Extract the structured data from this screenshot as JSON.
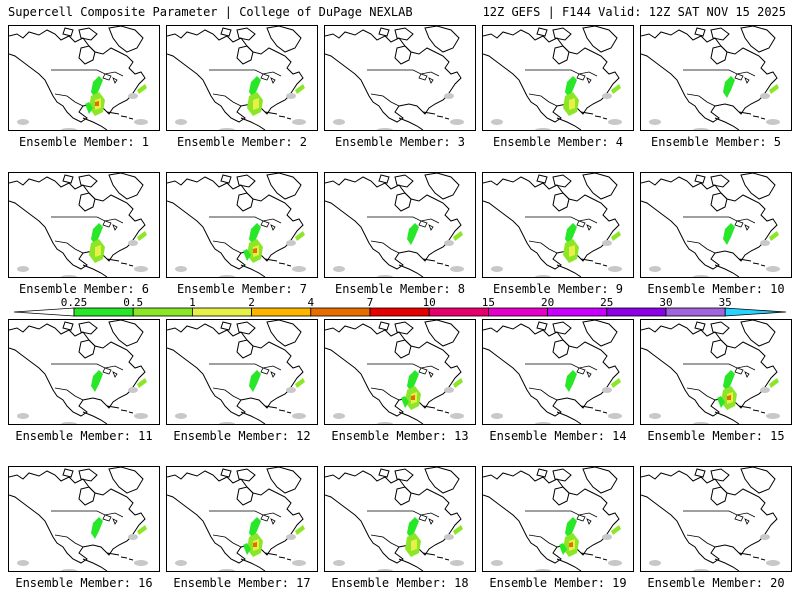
{
  "header": {
    "title": "Supercell Composite Parameter | College of DuPage NEXLAB",
    "run_info": "12Z GEFS | F144 Valid: 12Z SAT NOV 15 2025"
  },
  "colorbar": {
    "labels": [
      "0.25",
      "0.5",
      "1",
      "2",
      "4",
      "7",
      "10",
      "15",
      "20",
      "25",
      "30",
      "35"
    ],
    "colors": [
      "#c8c8c8",
      "#28e628",
      "#8ce628",
      "#e6f046",
      "#ffb400",
      "#e66e00",
      "#e60000",
      "#e6006e",
      "#e600c8",
      "#c800ff",
      "#8c00e6",
      "#a064dc",
      "#28d2ff"
    ]
  },
  "members": [
    {
      "label": "Ensemble Member: 1",
      "intensity": 3
    },
    {
      "label": "Ensemble Member: 2",
      "intensity": 2
    },
    {
      "label": "Ensemble Member: 3",
      "intensity": 0
    },
    {
      "label": "Ensemble Member: 4",
      "intensity": 2
    },
    {
      "label": "Ensemble Member: 5",
      "intensity": 1
    },
    {
      "label": "Ensemble Member: 6",
      "intensity": 2
    },
    {
      "label": "Ensemble Member: 7",
      "intensity": 3
    },
    {
      "label": "Ensemble Member: 8",
      "intensity": 1
    },
    {
      "label": "Ensemble Member: 9",
      "intensity": 2
    },
    {
      "label": "Ensemble Member: 10",
      "intensity": 1
    },
    {
      "label": "Ensemble Member: 11",
      "intensity": 1
    },
    {
      "label": "Ensemble Member: 12",
      "intensity": 1
    },
    {
      "label": "Ensemble Member: 13",
      "intensity": 3
    },
    {
      "label": "Ensemble Member: 14",
      "intensity": 1
    },
    {
      "label": "Ensemble Member: 15",
      "intensity": 3
    },
    {
      "label": "Ensemble Member: 16",
      "intensity": 1
    },
    {
      "label": "Ensemble Member: 17",
      "intensity": 3
    },
    {
      "label": "Ensemble Member: 18",
      "intensity": 2
    },
    {
      "label": "Ensemble Member: 19",
      "intensity": 3
    },
    {
      "label": "Ensemble Member: 20",
      "intensity": 0
    }
  ]
}
